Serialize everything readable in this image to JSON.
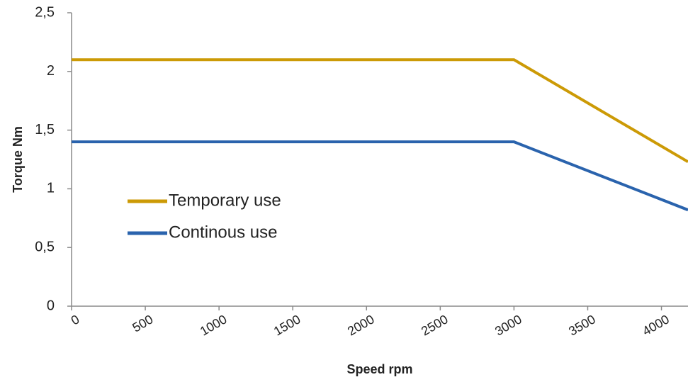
{
  "chart_data": {
    "type": "line",
    "x_label": "Speed rpm",
    "y_label": "Torque Nm",
    "x": [
      0,
      3000,
      4180
    ],
    "series": [
      {
        "name": "Temporary use",
        "color": "#cc9a06",
        "values": [
          2.1,
          2.1,
          1.23
        ]
      },
      {
        "name": "Continous use",
        "color": "#2a63ad",
        "values": [
          1.4,
          1.4,
          0.82
        ]
      }
    ],
    "xlim": [
      0,
      4180
    ],
    "xticks": [
      0,
      500,
      1000,
      1500,
      2000,
      2500,
      3000,
      3500,
      4000
    ],
    "ylim": [
      0,
      2.5
    ],
    "yticks": [
      0,
      {
        "value": 0.5,
        "label": "0,5"
      },
      1,
      {
        "value": 1.5,
        "label": "1,5"
      },
      2,
      {
        "value": 2.5,
        "label": "2,5"
      }
    ],
    "grid": false,
    "legend": "center-left"
  }
}
